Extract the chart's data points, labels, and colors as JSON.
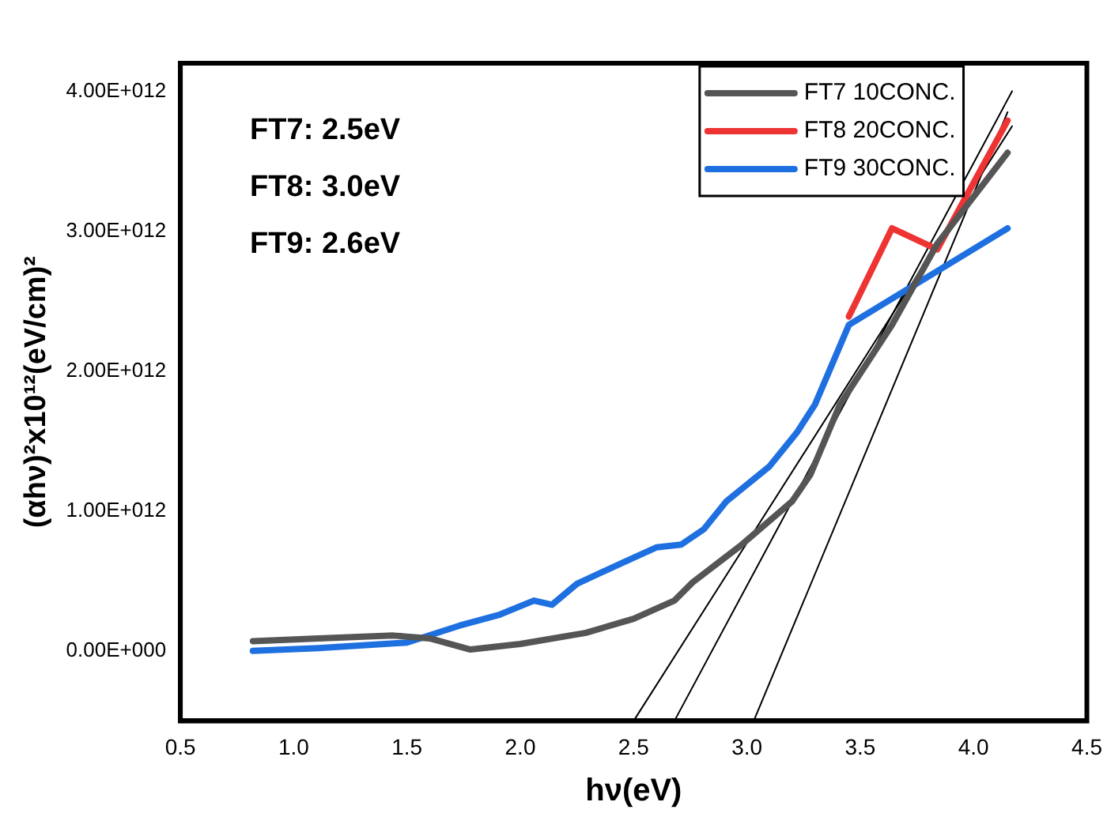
{
  "chart_data": {
    "type": "line",
    "xlabel": "hν(eV)",
    "ylabel": "(αhν)²x10¹²(eV/cm)²",
    "annotations": [
      "FT7: 2.5eV",
      "FT8: 3.0eV",
      "FT9: 2.6eV"
    ],
    "xlim": [
      0.5,
      4.5
    ],
    "xticks": [
      {
        "value": 0.5,
        "label": "0.5"
      },
      {
        "value": 1,
        "label": "1.0"
      },
      {
        "value": 1.5,
        "label": "1.5"
      },
      {
        "value": 2,
        "label": "2.0"
      },
      {
        "value": 2.5,
        "label": "2.5"
      },
      {
        "value": 3,
        "label": "3.0"
      },
      {
        "value": 3.5,
        "label": "3.5"
      },
      {
        "value": 4,
        "label": "4.0"
      },
      {
        "value": 4.5,
        "label": "4.5"
      }
    ],
    "ylim": [
      -500000000000,
      4200000000000
    ],
    "yticks": [
      {
        "value": 0,
        "label": "0.00E+000"
      },
      {
        "value": 1000000000000,
        "label": "1.00E+012"
      },
      {
        "value": 2000000000000,
        "label": "2.00E+012"
      },
      {
        "value": 3000000000000,
        "label": "3.00E+012"
      },
      {
        "value": 4000000000000,
        "label": "4.00E+012"
      }
    ],
    "grid": false,
    "legend": "top right",
    "marker": "none",
    "line_style": "solid",
    "series": [
      {
        "name": "FT7 10CONC.",
        "color": "#555555",
        "x": [
          0.82,
          1.11,
          1.44,
          1.6,
          1.78,
          2.0,
          2.29,
          2.5,
          2.68,
          2.76,
          2.97,
          3.2,
          3.28,
          3.41,
          3.64,
          3.84,
          4.15
        ],
        "values": [
          70000000000,
          90000000000,
          110000000000,
          90000000000,
          10000000000,
          50000000000,
          130000000000,
          230000000000,
          360000000000,
          490000000000,
          750000000000,
          1070000000000,
          1260000000000,
          1760000000000,
          2330000000000,
          2910000000000,
          3560000000000
        ]
      },
      {
        "name": "FT8 20CONC.",
        "color": "#ee3333",
        "x": [
          3.45,
          3.64,
          3.84,
          4.15
        ],
        "values": [
          2390000000000,
          3020000000000,
          2870000000000,
          3790000000000
        ]
      },
      {
        "name": "FT9 30CONC.",
        "color": "#1e6fe0",
        "x": [
          0.82,
          1.11,
          1.5,
          1.73,
          1.91,
          2.06,
          2.14,
          2.25,
          2.45,
          2.6,
          2.71,
          2.81,
          2.91,
          3.1,
          3.22,
          3.3,
          3.45,
          4.15
        ],
        "values": [
          0,
          20000000000,
          60000000000,
          180000000000,
          260000000000,
          360000000000,
          330000000000,
          480000000000,
          630000000000,
          740000000000,
          760000000000,
          870000000000,
          1070000000000,
          1320000000000,
          1560000000000,
          1760000000000,
          2330000000000,
          3020000000000
        ]
      },
      {
        "type": "line",
        "color": "#000000",
        "x": [
          2.5,
          4.17
        ],
        "values": [
          -500000000000,
          3750000000000
        ]
      },
      {
        "type": "line",
        "color": "#000000",
        "x": [
          2.68,
          4.17
        ],
        "values": [
          -500000000000,
          4000000000000
        ]
      },
      {
        "type": "line",
        "color": "#000000",
        "x": [
          3.03,
          4.15
        ],
        "values": [
          -500000000000,
          3850000000000
        ]
      }
    ]
  }
}
